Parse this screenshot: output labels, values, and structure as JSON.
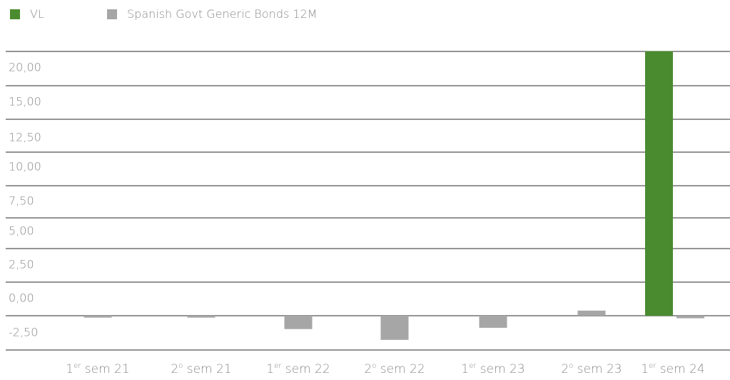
{
  "chart_data": {
    "type": "bar",
    "categories": [
      {
        "main": "1",
        "sup": "er",
        "rest": " sem 21"
      },
      {
        "main": "2",
        "sup": "o",
        "rest": " sem 21"
      },
      {
        "main": "1",
        "sup": "er",
        "rest": " sem 22"
      },
      {
        "main": "2",
        "sup": "o",
        "rest": " sem 22"
      },
      {
        "main": "1",
        "sup": "er",
        "rest": " sem 23"
      },
      {
        "main": "2",
        "sup": "o",
        "rest": " sem 23"
      },
      {
        "main": "1",
        "sup": "er",
        "rest": " sem 24"
      }
    ],
    "series": [
      {
        "name": "VL",
        "color": "#4a8b2f",
        "values": [
          0,
          0,
          0,
          0,
          0,
          0,
          20.8
        ]
      },
      {
        "name": "Spanish Govt Generic Bonds 12M",
        "color": "#a6a6a6",
        "values": [
          -0.15,
          -0.15,
          -1.05,
          -1.9,
          -0.95,
          0.4,
          -0.2
        ]
      }
    ],
    "yticks": [
      "-2,50",
      "0,00",
      "2,50",
      "5,00",
      "7,50",
      "10,00",
      "12,50",
      "15,00",
      "20,00"
    ],
    "legend_position": "top-left",
    "grid": true
  }
}
